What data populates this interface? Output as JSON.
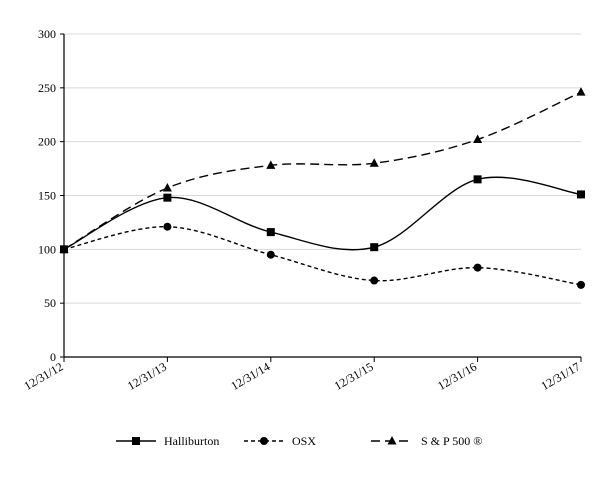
{
  "chart_data": {
    "type": "line",
    "title": "",
    "xlabel": "",
    "ylabel": "",
    "categories": [
      "12/31/12",
      "12/31/13",
      "12/31/14",
      "12/31/15",
      "12/31/16",
      "12/31/17"
    ],
    "ylim": [
      0,
      300
    ],
    "yticks": [
      0,
      50,
      100,
      150,
      200,
      250,
      300
    ],
    "grid": true,
    "legend_position": "bottom",
    "series": [
      {
        "name": "Halliburton",
        "values": [
          100,
          148,
          116,
          102,
          165,
          151
        ],
        "marker": "square",
        "dash": "solid",
        "color": "#000000"
      },
      {
        "name": "OSX",
        "values": [
          100,
          121,
          95,
          71,
          83,
          67
        ],
        "marker": "circle",
        "dash": "short-dash",
        "color": "#000000"
      },
      {
        "name": "S & P 500 ®",
        "values": [
          100,
          157,
          178,
          180,
          202,
          246
        ],
        "marker": "triangle",
        "dash": "long-dash",
        "color": "#000000"
      }
    ]
  }
}
